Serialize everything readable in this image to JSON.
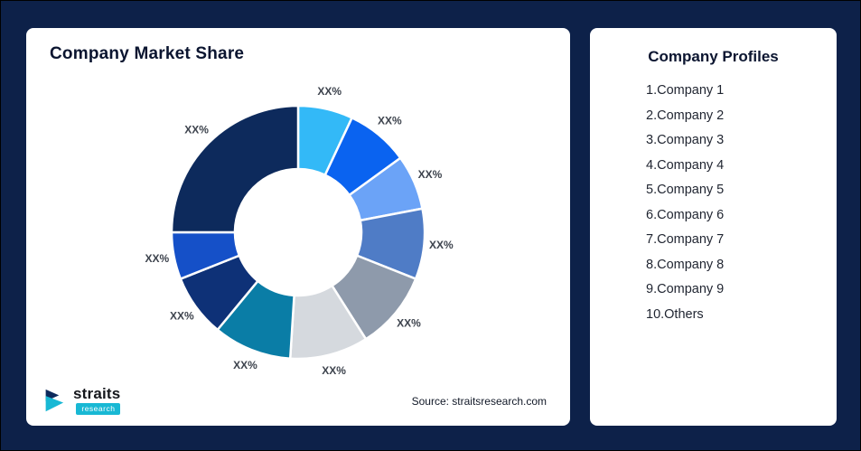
{
  "theme": {
    "page_bg": "#0d2149",
    "card_bg": "#ffffff",
    "title_color": "#0b1530",
    "text_color": "#1f2430",
    "slice_label_color": "#3d434d",
    "accent_teal": "#18b8d4"
  },
  "left_card": {
    "title": "Company Market Share",
    "source": "Source: straitsresearch.com",
    "logo": {
      "name": "straits",
      "sub": "research"
    }
  },
  "right_card": {
    "title": "Company Profiles",
    "items": [
      "1.Company 1",
      "2.Company 2",
      "3.Company 3",
      "4.Company 4",
      "5.Company 5",
      "6.Company 6",
      "7.Company 7",
      "8.Company 8",
      "9.Company 9",
      "10.Others"
    ]
  },
  "chart_data": {
    "type": "pie",
    "subtype": "donut",
    "title": "Company Market Share",
    "labels": [
      "XX%",
      "XX%",
      "XX%",
      "XX%",
      "XX%",
      "XX%",
      "XX%",
      "XX%",
      "XX%",
      "XX%"
    ],
    "values": [
      7,
      8,
      7,
      9,
      10,
      10,
      10,
      8,
      6,
      25
    ],
    "note": "All slices labeled with XX% placeholders; values estimated from arc angles",
    "colors": [
      "#33b9f7",
      "#0a63f0",
      "#6ba3f7",
      "#4f7cc6",
      "#8e9aab",
      "#d5d9de",
      "#0a7da6",
      "#0e3177",
      "#1550c8",
      "#0d2a5c"
    ],
    "start_angle_deg": 0,
    "clockwise": true,
    "inner_radius_ratio": 0.5,
    "legend": "none",
    "source": "Source: straitsresearch.com"
  }
}
